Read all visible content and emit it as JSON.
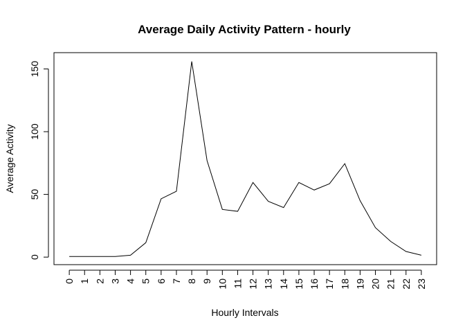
{
  "chart_data": {
    "type": "line",
    "title": "Average Daily Activity Pattern - hourly",
    "xlabel": "Hourly Intervals",
    "ylabel": "Average Activity",
    "x": [
      0,
      1,
      2,
      3,
      4,
      5,
      6,
      7,
      8,
      9,
      10,
      11,
      12,
      13,
      14,
      15,
      16,
      17,
      18,
      19,
      20,
      21,
      22,
      23
    ],
    "x_tick_labels": [
      "0",
      "1",
      "2",
      "3",
      "4",
      "5",
      "6",
      "7",
      "8",
      "9",
      "10",
      "11",
      "12",
      "13",
      "14",
      "15",
      "16",
      "17",
      "18",
      "19",
      "20",
      "21",
      "22",
      "23"
    ],
    "series": [
      {
        "values": [
          0.5,
          0.5,
          0.5,
          0.5,
          1.5,
          11.5,
          46.5,
          52.5,
          156,
          77,
          38,
          36.5,
          59.5,
          44.5,
          39.5,
          59.5,
          53.5,
          58.5,
          74.5,
          45,
          23.5,
          12.5,
          4.5,
          1.5
        ],
        "color": "#000000"
      }
    ],
    "y_ticks": [
      0,
      50,
      100,
      150
    ],
    "y_tick_labels": [
      "0",
      "50",
      "100",
      "150"
    ],
    "xlim": [
      -1,
      24
    ],
    "ylim": [
      -6,
      163
    ],
    "grid": false,
    "legend": "none"
  }
}
